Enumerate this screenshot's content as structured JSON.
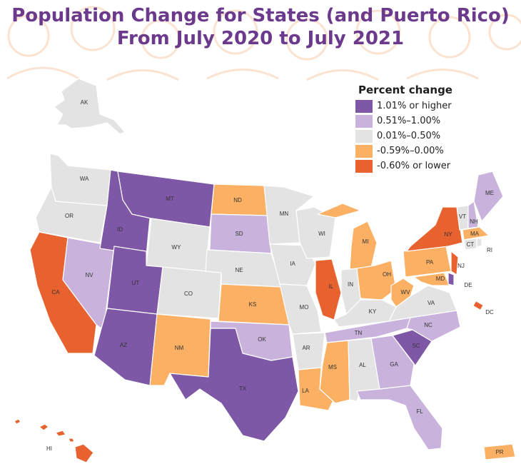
{
  "title_line1": "Population Change for States (and Puerto Rico)",
  "title_line2": "From July 2020 to July 2021",
  "legend": {
    "title": "Percent change",
    "items": [
      {
        "label": "1.01% or higher",
        "color": "#7e57a6"
      },
      {
        "label": "0.51%–1.00%",
        "color": "#c9b3dc"
      },
      {
        "label": "0.01%–0.50%",
        "color": "#e3e3e3"
      },
      {
        "label": "-0.59%–0.00%",
        "color": "#fbb063"
      },
      {
        "label": "-0.60% or lower",
        "color": "#e8622f"
      }
    ]
  },
  "states": {
    "WA": "WA",
    "OR": "OR",
    "CA": "CA",
    "NV": "NV",
    "ID": "ID",
    "MT": "MT",
    "WY": "WY",
    "UT": "UT",
    "CO": "CO",
    "AZ": "AZ",
    "NM": "NM",
    "ND": "ND",
    "SD": "SD",
    "NE": "NE",
    "KS": "KS",
    "OK": "OK",
    "TX": "TX",
    "MN": "MN",
    "IA": "IA",
    "MO": "MO",
    "AR": "AR",
    "LA": "LA",
    "WI": "WI",
    "IL": "IL",
    "MI": "MI",
    "IN": "IN",
    "OH": "OH",
    "KY": "KY",
    "TN": "TN",
    "MS": "MS",
    "AL": "AL",
    "GA": "GA",
    "FL": "FL",
    "SC": "SC",
    "NC": "NC",
    "VA": "VA",
    "WV": "WV",
    "PA": "PA",
    "NY": "NY",
    "VT": "VT",
    "NH": "NH",
    "ME": "ME",
    "MA": "MA",
    "CT": "CT",
    "RI": "RI",
    "NJ": "NJ",
    "DE": "DE",
    "MD": "MD",
    "DC": "DC",
    "AK": "AK",
    "HI": "HI",
    "PR": "PR"
  }
}
